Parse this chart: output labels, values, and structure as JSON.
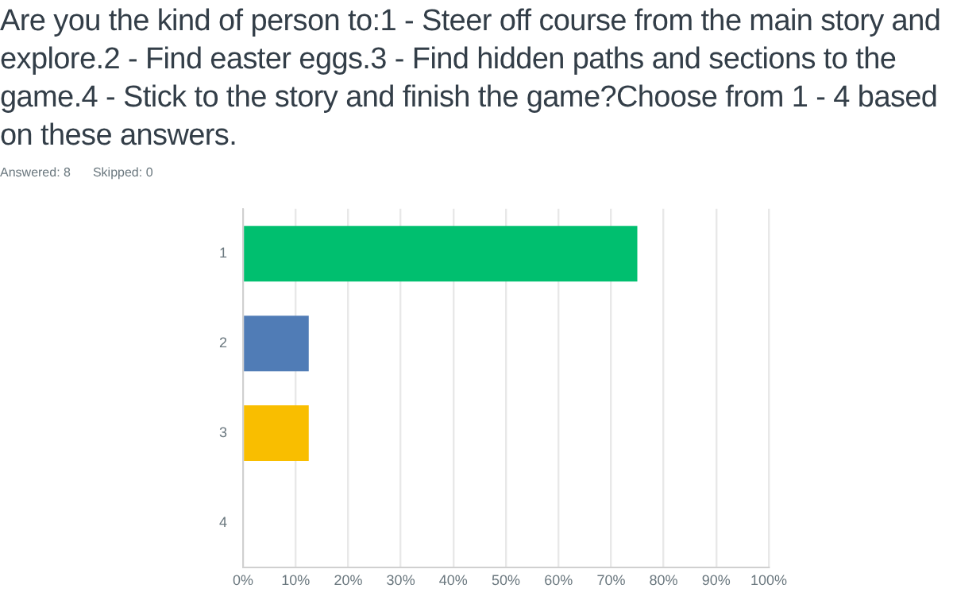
{
  "chart_data": {
    "type": "bar",
    "orientation": "horizontal",
    "title": "Are you the kind of person to:1 - Steer off course from the main story and explore.2 - Find easter eggs.3 - Find hidden paths and sections to the game.4 - Stick to the story and finish the game?Choose from 1 - 4 based on these answers.",
    "annotations": [
      "Answered: 8",
      "Skipped: 0"
    ],
    "categories": [
      "1",
      "2",
      "3",
      "4"
    ],
    "values": [
      75,
      12.5,
      12.5,
      0
    ],
    "colors": [
      "#00bf6f",
      "#507cb6",
      "#f9be00",
      null
    ],
    "xlim": [
      0,
      100
    ],
    "xticks": [
      {
        "value": 0,
        "label": "0%"
      },
      {
        "value": 10,
        "label": "10%"
      },
      {
        "value": 20,
        "label": "20%"
      },
      {
        "value": 30,
        "label": "30%"
      },
      {
        "value": 40,
        "label": "40%"
      },
      {
        "value": 50,
        "label": "50%"
      },
      {
        "value": 60,
        "label": "60%"
      },
      {
        "value": 70,
        "label": "70%"
      },
      {
        "value": 80,
        "label": "80%"
      },
      {
        "value": 90,
        "label": "90%"
      },
      {
        "value": 100,
        "label": "100%"
      }
    ],
    "grid": "x",
    "legend": false
  }
}
